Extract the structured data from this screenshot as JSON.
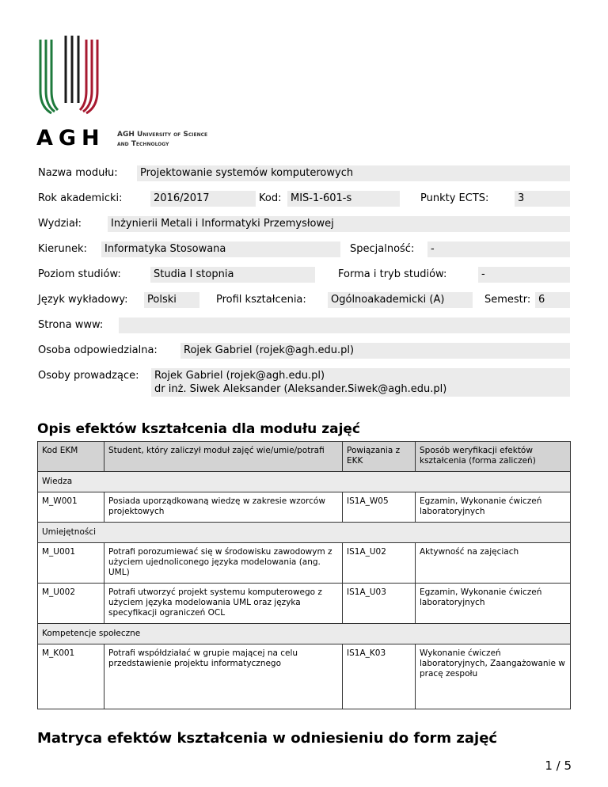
{
  "logo": {
    "mark": "AGH",
    "text_line1": "AGH University of Science",
    "text_line2": "and Technology",
    "colors": {
      "green": "#1e7a3c",
      "black": "#1a1a1a",
      "red": "#a71930"
    }
  },
  "fields": {
    "nazwa_label": "Nazwa modułu:",
    "nazwa": "Projektowanie systemów komputerowych",
    "rok_label": "Rok akademicki:",
    "rok": "2016/2017",
    "kod_label": "Kod:",
    "kod": "MIS-1-601-s",
    "ects_label": "Punkty ECTS:",
    "ects": "3",
    "wydzial_label": "Wydział:",
    "wydzial": "Inżynierii Metali i Informatyki Przemysłowej",
    "kierunek_label": "Kierunek:",
    "kierunek": "Informatyka Stosowana",
    "specjalnosc_label": "Specjalność:",
    "specjalnosc": "-",
    "poziom_label": "Poziom studiów:",
    "poziom": "Studia I stopnia",
    "forma_label": "Forma i tryb studiów:",
    "forma": "-",
    "jezyk_label": "Język wykładowy:",
    "jezyk": "Polski",
    "profil_label": "Profil kształcenia:",
    "profil": "Ogólnoakademicki (A)",
    "semestr_label": "Semestr:",
    "semestr": "6",
    "www_label": "Strona www:",
    "www": "",
    "odpowiedzialna_label": "Osoba odpowiedzialna:",
    "odpowiedzialna": "Rojek Gabriel (rojek@agh.edu.pl)",
    "prowadzace_label": "Osoby prowadzące:",
    "prowadzace": [
      "Rojek Gabriel (rojek@agh.edu.pl)",
      "dr inż. Siwek Aleksander (Aleksander.Siwek@agh.edu.pl)"
    ]
  },
  "section1_title": "Opis efektów kształcenia dla modułu zajęć",
  "table": {
    "headers": [
      "Kod EKM",
      "Student, który zaliczył moduł zajęć wie/umie/potrafi",
      "Powiązania z EKK",
      "Sposób weryfikacji efektów kształcenia (forma zaliczeń)"
    ],
    "sections": [
      {
        "name": "Wiedza",
        "rows": [
          [
            "M_W001",
            "Posiada uporządkowaną wiedzę w zakresie wzorców projektowych",
            "IS1A_W05",
            "Egzamin, Wykonanie ćwiczeń laboratoryjnych"
          ]
        ]
      },
      {
        "name": "Umiejętności",
        "rows": [
          [
            "M_U001",
            "Potrafi porozumiewać się w środowisku zawodowym z użyciem ujednoliconego języka modelowania (ang. UML)",
            "IS1A_U02",
            "Aktywność na zajęciach"
          ],
          [
            "M_U002",
            "Potrafi utworzyć projekt systemu komputerowego z użyciem języka modelowania UML oraz języka specyfikacji ograniczeń OCL",
            "IS1A_U03",
            "Egzamin, Wykonanie ćwiczeń laboratoryjnych"
          ]
        ]
      },
      {
        "name": "Kompetencje społeczne",
        "rows": [
          [
            "M_K001",
            "Potrafi współdziałać w grupie mającej na celu przedstawienie projektu informatycznego",
            "IS1A_K03",
            "Wykonanie ćwiczeń laboratoryjnych, Zaangażowanie w pracę zespołu"
          ]
        ]
      }
    ]
  },
  "section2_title": "Matryca efektów kształcenia w odniesieniu do form zajęć",
  "page_number": "1 / 5"
}
